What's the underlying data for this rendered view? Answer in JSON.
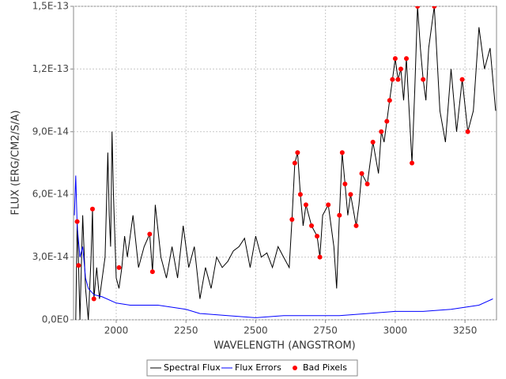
{
  "chart_data": {
    "type": "line",
    "x_label": "WAVELENGTH (ANGSTROM)",
    "y_label": "FLUX (ERG/CM2/S/A)",
    "xlim": [
      1847,
      3363
    ],
    "xticks": [
      2000,
      2250,
      2500,
      2750,
      3000,
      3250
    ],
    "ylim": [
      0,
      1.5e-13
    ],
    "yticks": [
      {
        "value": 0,
        "label": "0,0E0"
      },
      {
        "value": 3e-14,
        "label": "3,0E-14"
      },
      {
        "value": 6e-14,
        "label": "6,0E-14"
      },
      {
        "value": 9e-14,
        "label": "9,0E-14"
      },
      {
        "value": 1.2e-13,
        "label": "1,2E-13"
      },
      {
        "value": 1.5e-13,
        "label": "1,5E-13"
      }
    ],
    "grid": true,
    "legend": "bottom",
    "series": [
      {
        "name": "Spectral Flux",
        "color": "#000000",
        "style": "line",
        "x": [
          1855,
          1860,
          1865,
          1870,
          1880,
          1890,
          1900,
          1910,
          1915,
          1920,
          1930,
          1940,
          1950,
          1960,
          1970,
          1975,
          1980,
          1985,
          1990,
          2000,
          2010,
          2020,
          2030,
          2040,
          2060,
          2080,
          2100,
          2120,
          2130,
          2140,
          2160,
          2180,
          2200,
          2220,
          2240,
          2260,
          2280,
          2300,
          2320,
          2340,
          2360,
          2380,
          2400,
          2420,
          2440,
          2460,
          2480,
          2500,
          2520,
          2540,
          2560,
          2580,
          2600,
          2620,
          2630,
          2640,
          2650,
          2660,
          2670,
          2680,
          2700,
          2720,
          2730,
          2740,
          2760,
          2780,
          2790,
          2800,
          2810,
          2820,
          2830,
          2840,
          2860,
          2870,
          2880,
          2900,
          2910,
          2920,
          2940,
          2950,
          2960,
          2970,
          2980,
          2990,
          3000,
          3010,
          3020,
          3030,
          3040,
          3050,
          3060,
          3070,
          3080,
          3090,
          3100,
          3110,
          3120,
          3140,
          3160,
          3180,
          3200,
          3220,
          3240,
          3260,
          3280,
          3300,
          3320,
          3340,
          3360
        ],
        "values": [
          0,
          4.7e-14,
          2.6e-14,
          0,
          5e-14,
          1.5e-14,
          0,
          3e-14,
          5.3e-14,
          1e-14,
          2.5e-14,
          1e-14,
          2e-14,
          3e-14,
          8e-14,
          5e-14,
          3.5e-14,
          9e-14,
          6e-14,
          2e-14,
          1.5e-14,
          2.5e-14,
          4e-14,
          3e-14,
          5e-14,
          2.5e-14,
          3.5e-14,
          4.1e-14,
          2.3e-14,
          5.5e-14,
          3e-14,
          2e-14,
          3.5e-14,
          2e-14,
          4.5e-14,
          2.5e-14,
          3.5e-14,
          1e-14,
          2.5e-14,
          1.5e-14,
          3e-14,
          2.5e-14,
          2.8e-14,
          3.3e-14,
          3.5e-14,
          3.9e-14,
          2.5e-14,
          4e-14,
          3e-14,
          3.2e-14,
          2.5e-14,
          3.5e-14,
          3e-14,
          2.5e-14,
          4.8e-14,
          7.5e-14,
          8e-14,
          6e-14,
          4.5e-14,
          5.5e-14,
          4.5e-14,
          4e-14,
          3e-14,
          5e-14,
          5.5e-14,
          3.5e-14,
          1.5e-14,
          5e-14,
          8e-14,
          6.5e-14,
          5e-14,
          6e-14,
          4.5e-14,
          5.5e-14,
          7e-14,
          6.5e-14,
          7.5e-14,
          8.5e-14,
          7e-14,
          9e-14,
          8.5e-14,
          9.5e-14,
          1.05e-13,
          1.15e-13,
          1.25e-13,
          1.15e-13,
          1.2e-13,
          1.05e-13,
          1.25e-13,
          1e-13,
          7.5e-14,
          1.1e-13,
          1.5e-13,
          1.3e-13,
          1.15e-13,
          1.05e-13,
          1.3e-13,
          1.5e-13,
          1e-13,
          8.5e-14,
          1.2e-13,
          9e-14,
          1.15e-13,
          9e-14,
          1e-13,
          1.4e-13,
          1.2e-13,
          1.3e-13,
          1e-13
        ]
      },
      {
        "name": "Flux Errors",
        "color": "#0000ff",
        "style": "line",
        "x": [
          1850,
          1855,
          1860,
          1870,
          1880,
          1890,
          1900,
          1920,
          1950,
          2000,
          2050,
          2100,
          2150,
          2200,
          2250,
          2300,
          2400,
          2500,
          2600,
          2700,
          2800,
          2900,
          3000,
          3100,
          3200,
          3300,
          3350
        ],
        "values": [
          5e-14,
          6.9e-14,
          4.5e-14,
          3e-14,
          3.5e-14,
          2e-14,
          1.5e-14,
          1.2e-14,
          1.1e-14,
          8e-15,
          7e-15,
          7e-15,
          7e-15,
          6e-15,
          5e-15,
          3e-15,
          2e-15,
          1e-15,
          2e-15,
          2e-15,
          2e-15,
          3e-15,
          4e-15,
          4e-15,
          5e-15,
          7e-15,
          1e-14
        ]
      },
      {
        "name": "Bad Pixels",
        "color": "#ff0000",
        "style": "markers",
        "x": [
          1860,
          1865,
          1915,
          1920,
          2010,
          2120,
          2130,
          2630,
          2640,
          2650,
          2660,
          2680,
          2700,
          2720,
          2730,
          2760,
          2800,
          2810,
          2820,
          2840,
          2860,
          2880,
          2900,
          2920,
          2950,
          2970,
          2980,
          2990,
          3000,
          3010,
          3020,
          3040,
          3060,
          3080,
          3100,
          3140,
          3240,
          3260
        ],
        "values": [
          4.7e-14,
          2.6e-14,
          5.3e-14,
          1e-14,
          2.5e-14,
          4.1e-14,
          2.3e-14,
          4.8e-14,
          7.5e-14,
          8e-14,
          6e-14,
          5.5e-14,
          4.5e-14,
          4e-14,
          3e-14,
          5.5e-14,
          5e-14,
          8e-14,
          6.5e-14,
          6e-14,
          4.5e-14,
          7e-14,
          6.5e-14,
          8.5e-14,
          9e-14,
          9.5e-14,
          1.05e-13,
          1.15e-13,
          1.25e-13,
          1.15e-13,
          1.2e-13,
          1.25e-13,
          7.5e-14,
          1.5e-13,
          1.15e-13,
          1.5e-13,
          1.15e-13,
          9e-14
        ]
      }
    ]
  }
}
